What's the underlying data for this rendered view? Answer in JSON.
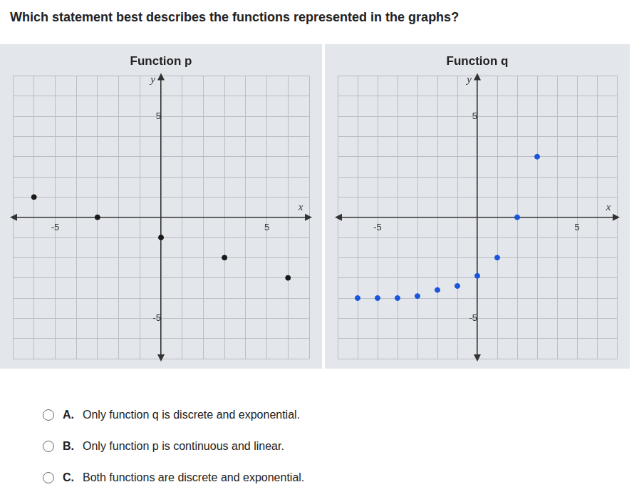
{
  "question": "Which statement best describes the functions represented in the graphs?",
  "chart_data": [
    {
      "type": "scatter",
      "title": "Function p",
      "x_label": "x",
      "y_label": "y",
      "x": [
        -6,
        -3,
        0,
        3,
        6
      ],
      "values": [
        1,
        0,
        -1,
        -2,
        -3
      ],
      "color": "#1a1a1a",
      "marker": "circle",
      "xlim": [
        -7,
        7
      ],
      "ylim": [
        -7,
        7
      ],
      "xticks": [
        -5,
        5
      ],
      "yticks": [
        -5,
        5
      ],
      "grid": true
    },
    {
      "type": "scatter",
      "title": "Function q",
      "x_label": "x",
      "y_label": "y",
      "x": [
        -6,
        -5,
        -4,
        -3,
        -2,
        -1,
        0,
        1,
        2,
        3
      ],
      "values": [
        -4,
        -4,
        -4,
        -3.9,
        -3.6,
        -3.4,
        -2.9,
        -2,
        0,
        3
      ],
      "color": "#1a56db",
      "marker": "circle",
      "xlim": [
        -7,
        7
      ],
      "ylim": [
        -7,
        7
      ],
      "xticks": [
        -5,
        5
      ],
      "yticks": [
        -5,
        5
      ],
      "grid": true
    }
  ],
  "choices": [
    {
      "letter": "A.",
      "text": "Only function q is discrete and exponential."
    },
    {
      "letter": "B.",
      "text": "Only function p is continuous and linear."
    },
    {
      "letter": "C.",
      "text": "Both functions are discrete and exponential."
    }
  ]
}
